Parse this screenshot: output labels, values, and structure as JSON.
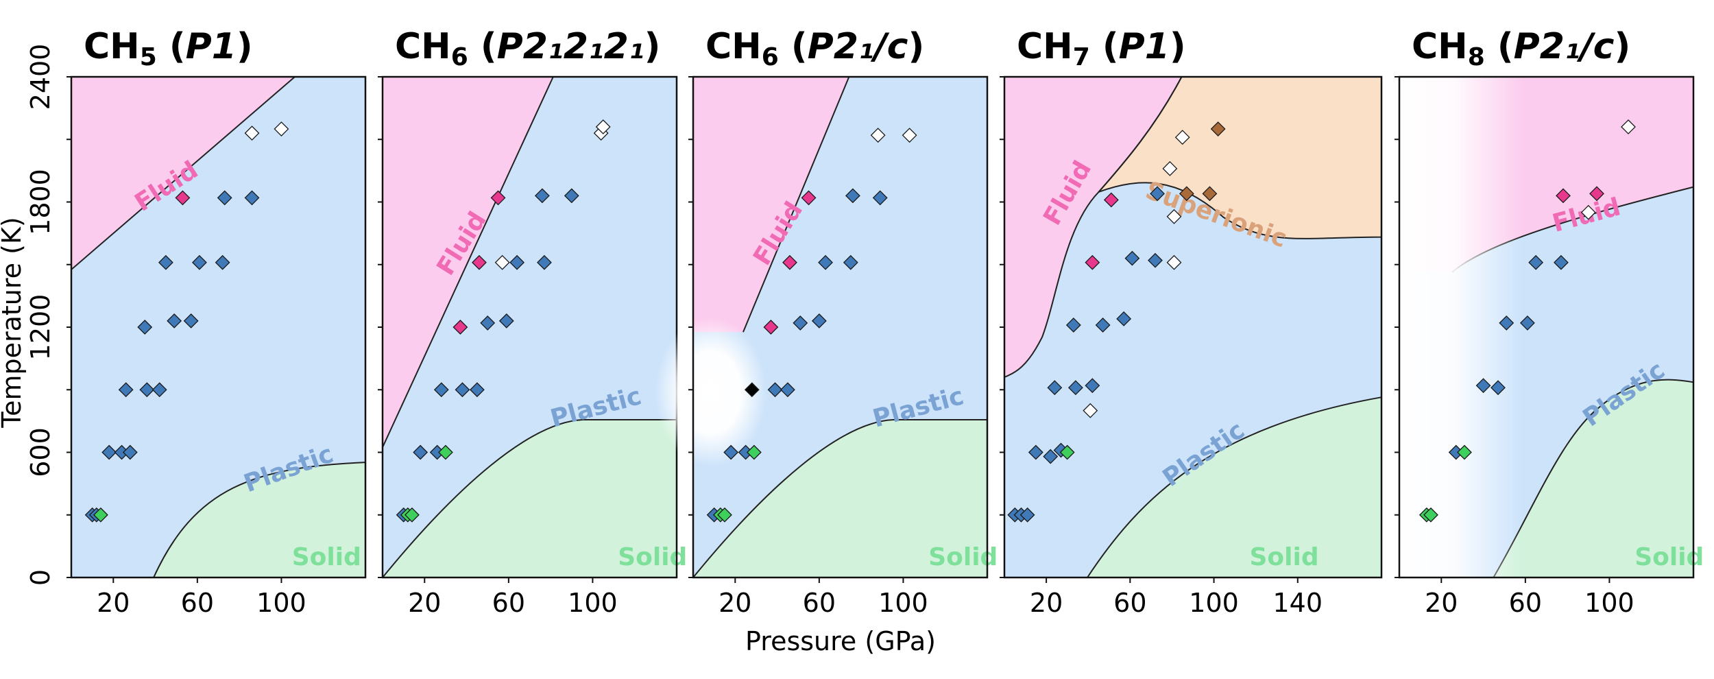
{
  "chart_data": {
    "type": "scatter",
    "xlabel": "Pressure (GPa)",
    "ylabel": "Temperature (K)",
    "ylim": [
      0,
      2400
    ],
    "yticks": [
      "0",
      "600",
      "1200",
      "1800",
      "2400"
    ],
    "colors": {
      "fluid": "#fcccee",
      "plastic": "#cce3fa",
      "solid": "#d2f2dc",
      "superionic": "#fbe0c8",
      "fluid_text": "#f06ab4",
      "plastic_text": "#7aa3d4",
      "solid_text": "#7ee09a",
      "superionic_text": "#d9a27a",
      "fluid_pt": "#e8388e",
      "plastic_pt": "#3f79b8",
      "solid_pt": "#3fcf5c",
      "superionic_pt": "#a96a3a",
      "open_pt": "#ffffff",
      "black_pt": "#000000"
    },
    "panels": [
      {
        "title": "CH",
        "sub": "5",
        "sym": "P1",
        "xlim": [
          0,
          140
        ],
        "xticks": [
          "20",
          "60",
          "100"
        ],
        "regions": [
          "Fluid",
          "Plastic",
          "Solid"
        ],
        "points": [
          {
            "p": 10,
            "t": 300,
            "c": "plastic"
          },
          {
            "p": 12,
            "t": 300,
            "c": "plastic"
          },
          {
            "p": 14,
            "t": 300,
            "c": "solid"
          },
          {
            "p": 18,
            "t": 600,
            "c": "plastic"
          },
          {
            "p": 24,
            "t": 600,
            "c": "plastic"
          },
          {
            "p": 28,
            "t": 600,
            "c": "plastic"
          },
          {
            "p": 26,
            "t": 900,
            "c": "plastic"
          },
          {
            "p": 36,
            "t": 900,
            "c": "plastic"
          },
          {
            "p": 42,
            "t": 900,
            "c": "plastic"
          },
          {
            "p": 35,
            "t": 1200,
            "c": "plastic"
          },
          {
            "p": 49,
            "t": 1230,
            "c": "plastic"
          },
          {
            "p": 57,
            "t": 1230,
            "c": "plastic"
          },
          {
            "p": 45,
            "t": 1510,
            "c": "plastic"
          },
          {
            "p": 61,
            "t": 1510,
            "c": "plastic"
          },
          {
            "p": 72,
            "t": 1510,
            "c": "plastic"
          },
          {
            "p": 53,
            "t": 1820,
            "c": "fluid"
          },
          {
            "p": 73,
            "t": 1820,
            "c": "plastic"
          },
          {
            "p": 86,
            "t": 1820,
            "c": "plastic"
          },
          {
            "p": 86,
            "t": 2130,
            "c": "open"
          },
          {
            "p": 100,
            "t": 2150,
            "c": "open"
          }
        ]
      },
      {
        "title": "CH",
        "sub": "6",
        "sym": "P2₁2₁2₁",
        "xlim": [
          0,
          140
        ],
        "xticks": [
          "20",
          "60",
          "100"
        ],
        "regions": [
          "Fluid",
          "Plastic",
          "Solid"
        ],
        "points": [
          {
            "p": 10,
            "t": 300,
            "c": "plastic"
          },
          {
            "p": 12,
            "t": 300,
            "c": "solid"
          },
          {
            "p": 14,
            "t": 300,
            "c": "solid"
          },
          {
            "p": 18,
            "t": 600,
            "c": "plastic"
          },
          {
            "p": 26,
            "t": 600,
            "c": "plastic"
          },
          {
            "p": 30,
            "t": 600,
            "c": "solid"
          },
          {
            "p": 28,
            "t": 900,
            "c": "plastic"
          },
          {
            "p": 38,
            "t": 900,
            "c": "plastic"
          },
          {
            "p": 45,
            "t": 900,
            "c": "plastic"
          },
          {
            "p": 37,
            "t": 1200,
            "c": "fluid"
          },
          {
            "p": 50,
            "t": 1220,
            "c": "plastic"
          },
          {
            "p": 59,
            "t": 1230,
            "c": "plastic"
          },
          {
            "p": 46,
            "t": 1510,
            "c": "fluid"
          },
          {
            "p": 57,
            "t": 1510,
            "c": "open"
          },
          {
            "p": 64,
            "t": 1510,
            "c": "plastic"
          },
          {
            "p": 77,
            "t": 1510,
            "c": "plastic"
          },
          {
            "p": 55,
            "t": 1820,
            "c": "fluid"
          },
          {
            "p": 76,
            "t": 1830,
            "c": "plastic"
          },
          {
            "p": 90,
            "t": 1830,
            "c": "plastic"
          },
          {
            "p": 104,
            "t": 2130,
            "c": "open"
          },
          {
            "p": 105,
            "t": 2160,
            "c": "open"
          }
        ]
      },
      {
        "title": "CH",
        "sub": "6",
        "sym": "P2₁/c",
        "xlim": [
          0,
          140
        ],
        "xticks": [
          "20",
          "60",
          "100"
        ],
        "regions": [
          "Fluid",
          "Plastic",
          "Solid"
        ],
        "points": [
          {
            "p": 10,
            "t": 300,
            "c": "plastic"
          },
          {
            "p": 13,
            "t": 300,
            "c": "solid"
          },
          {
            "p": 15,
            "t": 300,
            "c": "solid"
          },
          {
            "p": 18,
            "t": 600,
            "c": "plastic"
          },
          {
            "p": 25,
            "t": 600,
            "c": "plastic"
          },
          {
            "p": 29,
            "t": 600,
            "c": "solid"
          },
          {
            "p": 28,
            "t": 900,
            "c": "black"
          },
          {
            "p": 39,
            "t": 900,
            "c": "plastic"
          },
          {
            "p": 45,
            "t": 900,
            "c": "plastic"
          },
          {
            "p": 37,
            "t": 1200,
            "c": "fluid"
          },
          {
            "p": 51,
            "t": 1220,
            "c": "plastic"
          },
          {
            "p": 60,
            "t": 1230,
            "c": "plastic"
          },
          {
            "p": 46,
            "t": 1510,
            "c": "fluid"
          },
          {
            "p": 63,
            "t": 1510,
            "c": "plastic"
          },
          {
            "p": 75,
            "t": 1510,
            "c": "plastic"
          },
          {
            "p": 55,
            "t": 1820,
            "c": "fluid"
          },
          {
            "p": 76,
            "t": 1830,
            "c": "plastic"
          },
          {
            "p": 89,
            "t": 1820,
            "c": "plastic"
          },
          {
            "p": 88,
            "t": 2120,
            "c": "open"
          },
          {
            "p": 103,
            "t": 2120,
            "c": "open"
          }
        ]
      },
      {
        "title": "CH",
        "sub": "7",
        "sym": "P1",
        "xlim": [
          0,
          180
        ],
        "xticks": [
          "20",
          "60",
          "100",
          "140"
        ],
        "regions": [
          "Fluid",
          "Superionic",
          "Plastic",
          "Solid"
        ],
        "points": [
          {
            "p": 5,
            "t": 300,
            "c": "plastic"
          },
          {
            "p": 8,
            "t": 300,
            "c": "plastic"
          },
          {
            "p": 11,
            "t": 300,
            "c": "plastic"
          },
          {
            "p": 15,
            "t": 600,
            "c": "plastic"
          },
          {
            "p": 22,
            "t": 580,
            "c": "plastic"
          },
          {
            "p": 27,
            "t": 610,
            "c": "plastic"
          },
          {
            "p": 30,
            "t": 600,
            "c": "solid"
          },
          {
            "p": 24,
            "t": 910,
            "c": "plastic"
          },
          {
            "p": 34,
            "t": 910,
            "c": "plastic"
          },
          {
            "p": 42,
            "t": 920,
            "c": "plastic"
          },
          {
            "p": 41,
            "t": 800,
            "c": "open"
          },
          {
            "p": 33,
            "t": 1210,
            "c": "plastic"
          },
          {
            "p": 47,
            "t": 1210,
            "c": "plastic"
          },
          {
            "p": 57,
            "t": 1240,
            "c": "plastic"
          },
          {
            "p": 42,
            "t": 1510,
            "c": "fluid"
          },
          {
            "p": 61,
            "t": 1530,
            "c": "plastic"
          },
          {
            "p": 72,
            "t": 1520,
            "c": "plastic"
          },
          {
            "p": 81,
            "t": 1510,
            "c": "open"
          },
          {
            "p": 51,
            "t": 1810,
            "c": "fluid"
          },
          {
            "p": 73,
            "t": 1840,
            "c": "plastic"
          },
          {
            "p": 81,
            "t": 1730,
            "c": "open"
          },
          {
            "p": 79,
            "t": 1960,
            "c": "open"
          },
          {
            "p": 87,
            "t": 1840,
            "c": "superionic"
          },
          {
            "p": 98,
            "t": 1840,
            "c": "superionic"
          },
          {
            "p": 85,
            "t": 2110,
            "c": "open"
          },
          {
            "p": 102,
            "t": 2150,
            "c": "superionic"
          }
        ]
      },
      {
        "title": "CH",
        "sub": "8",
        "sym": "P2₁/c",
        "xlim": [
          0,
          140
        ],
        "xticks": [
          "20",
          "60",
          "100"
        ],
        "regions": [
          "Fluid",
          "Plastic",
          "Solid"
        ],
        "points": [
          {
            "p": 13,
            "t": 300,
            "c": "solid"
          },
          {
            "p": 15,
            "t": 300,
            "c": "solid"
          },
          {
            "p": 27,
            "t": 600,
            "c": "plastic"
          },
          {
            "p": 31,
            "t": 600,
            "c": "solid"
          },
          {
            "p": 40,
            "t": 920,
            "c": "plastic"
          },
          {
            "p": 47,
            "t": 910,
            "c": "plastic"
          },
          {
            "p": 51,
            "t": 1220,
            "c": "plastic"
          },
          {
            "p": 61,
            "t": 1220,
            "c": "plastic"
          },
          {
            "p": 65,
            "t": 1510,
            "c": "plastic"
          },
          {
            "p": 77,
            "t": 1510,
            "c": "plastic"
          },
          {
            "p": 78,
            "t": 1830,
            "c": "fluid"
          },
          {
            "p": 90,
            "t": 1750,
            "c": "open"
          },
          {
            "p": 94,
            "t": 1840,
            "c": "fluid"
          },
          {
            "p": 109,
            "t": 2160,
            "c": "open"
          }
        ]
      }
    ]
  }
}
